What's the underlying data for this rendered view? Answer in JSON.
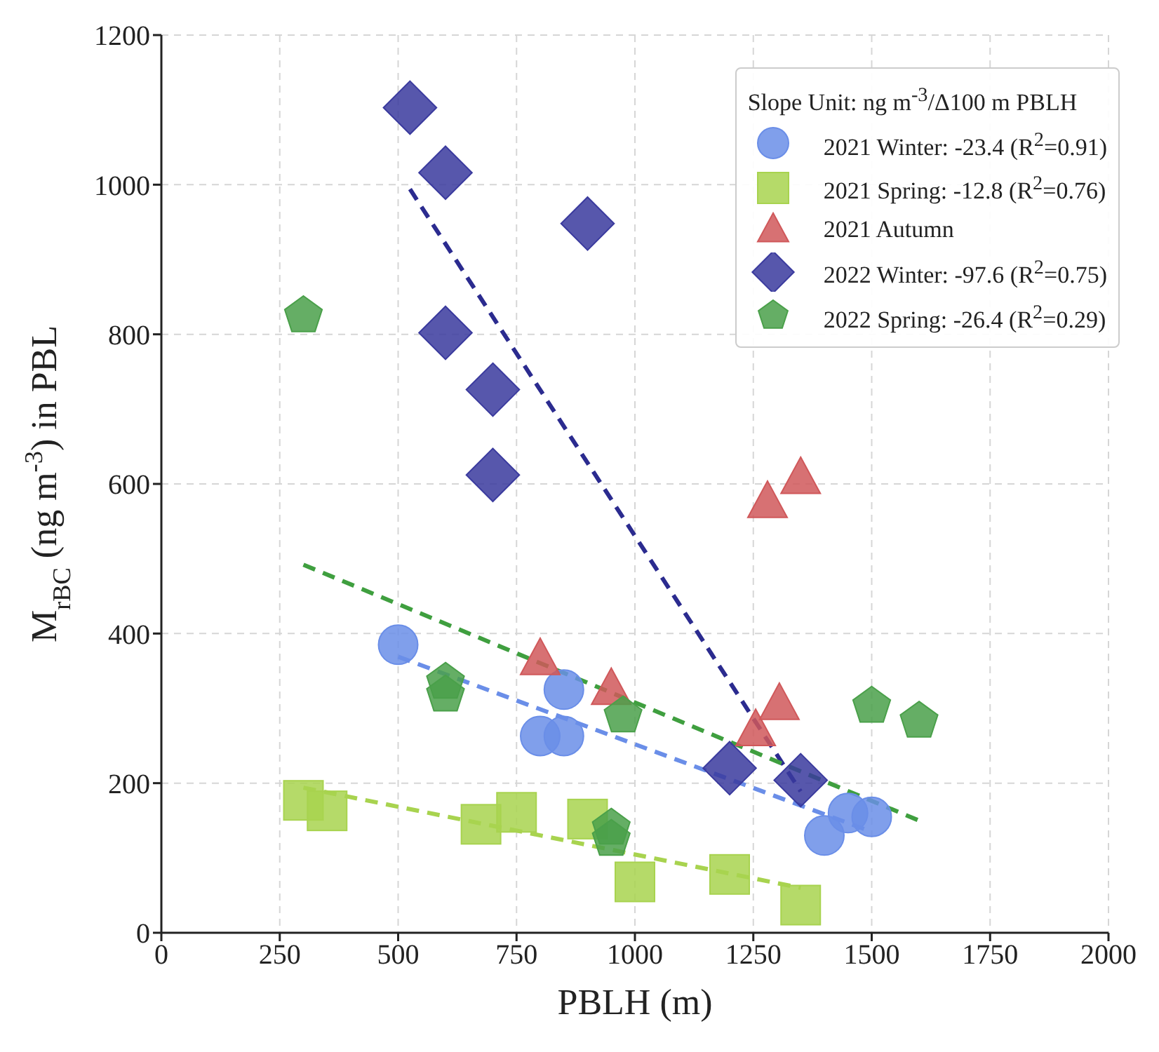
{
  "chart_data": {
    "type": "scatter",
    "xlabel": "PBLH (m)",
    "ylabel": "M$_{rBC}$ (ng m$^{-3}$) in PBL",
    "legend_title": "Slope Unit: ng m$^{-3}$/Δ100 m PBLH",
    "xlim": [
      0,
      2000
    ],
    "xticks": [
      0,
      250,
      500,
      750,
      1000,
      1250,
      1500,
      1750,
      2000
    ],
    "ylim": [
      0,
      1200
    ],
    "yticks": [
      0,
      200,
      400,
      600,
      800,
      1000,
      1200
    ],
    "grid": true,
    "legend": "top right",
    "series": [
      {
        "name": "2021 Winter: -23.4 (R$^{2}$=0.91)",
        "color": "#6a8ee8",
        "marker": "circle",
        "x": [
          500,
          850,
          800,
          850,
          1400,
          1450,
          1500
        ],
        "values": [
          385,
          325,
          263,
          263,
          130,
          160,
          155
        ]
      },
      {
        "name": "2021 Spring: -12.8 (R$^{2}$=0.76)",
        "color": "#a8d34f",
        "marker": "square",
        "x": [
          300,
          350,
          675,
          750,
          900,
          1000,
          1200,
          1350
        ],
        "values": [
          177,
          163,
          145,
          161,
          152,
          68,
          78,
          37
        ]
      },
      {
        "name": "2021 Autumn",
        "color": "#d0585a",
        "marker": "triangle",
        "x": [
          800,
          950,
          1255,
          1305,
          1280,
          1350
        ],
        "values": [
          365,
          325,
          270,
          305,
          575,
          607
        ]
      },
      {
        "name": "2022 Winter: -97.6 (R$^{2}$=0.75)",
        "color": "#3a3a9e",
        "marker": "diamond",
        "x": [
          525,
          600,
          900,
          600,
          700,
          700,
          1200,
          1350
        ],
        "values": [
          1103,
          1016,
          948,
          802,
          726,
          612,
          220,
          204
        ]
      },
      {
        "name": "2022 Spring: -26.4 (R$^{2}$=0.29)",
        "color": "#4aa04a",
        "x": [
          300,
          600,
          600,
          975,
          950,
          950,
          1500,
          1600
        ],
        "values": [
          825,
          335,
          318,
          290,
          140,
          125,
          303,
          283
        ]
      },
      {
        "type": "line",
        "color": "#6a8ee8",
        "line_style": "dashed",
        "marker": "none",
        "x": [
          500,
          1500
        ],
        "values": [
          369,
          135
        ]
      },
      {
        "type": "line",
        "color": "#a8d34f",
        "line_style": "dashed",
        "marker": "none",
        "x": [
          300,
          1350
        ],
        "values": [
          194,
          60
        ]
      },
      {
        "type": "line",
        "color": "#2b2b8f",
        "line_style": "dashed",
        "marker": "none",
        "x": [
          525,
          1350
        ],
        "values": [
          994,
          189
        ]
      },
      {
        "type": "line",
        "color": "#3f9f3f",
        "line_style": "dashed",
        "marker": "none",
        "x": [
          300,
          1600
        ],
        "values": [
          492,
          150
        ]
      }
    ]
  }
}
